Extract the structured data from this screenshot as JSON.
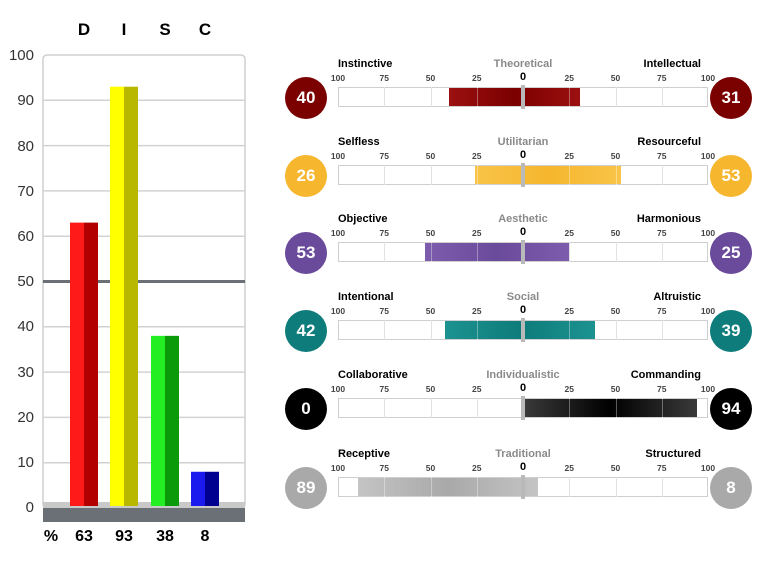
{
  "chart_data": [
    {
      "type": "bar",
      "categories": [
        "D",
        "I",
        "S",
        "C"
      ],
      "values": [
        63,
        93,
        38,
        8
      ],
      "ylim": [
        0,
        100
      ],
      "yticks": [
        "0",
        "10",
        "20",
        "30",
        "40",
        "50",
        "60",
        "70",
        "80",
        "90",
        "100"
      ],
      "reference_line": 50,
      "percent_label": "%",
      "value_labels": [
        "63",
        "93",
        "38",
        "8"
      ],
      "colors": [
        {
          "light": "#ff1a1a",
          "dark": "#b20000"
        },
        {
          "light": "#ffff00",
          "dark": "#b8b800"
        },
        {
          "light": "#22ee22",
          "dark": "#0a9a0a"
        },
        {
          "light": "#1a1aee",
          "dark": "#000090"
        }
      ]
    },
    {
      "type": "bar",
      "orientation": "bipolar-horizontal",
      "scale_ticks": [
        "100",
        "75",
        "50",
        "25",
        "0",
        "25",
        "50",
        "75",
        "100"
      ],
      "rows": [
        {
          "left_label": "Instinctive",
          "middle_label": "Theoretical",
          "right_label": "Intellectual",
          "left_value": 40,
          "right_value": 31,
          "left_text": "40",
          "right_text": "31",
          "color": "#7b0000",
          "light": "#9c1010"
        },
        {
          "left_label": "Selfless",
          "middle_label": "Utilitarian",
          "right_label": "Resourceful",
          "left_value": 26,
          "right_value": 53,
          "left_text": "26",
          "right_text": "53",
          "color": "#f6b62d",
          "light": "#f8c448"
        },
        {
          "left_label": "Objective",
          "middle_label": "Aesthetic",
          "right_label": "Harmonious",
          "left_value": 53,
          "right_value": 25,
          "left_text": "53",
          "right_text": "25",
          "color": "#6a4a9a",
          "light": "#7d5cae"
        },
        {
          "left_label": "Intentional",
          "middle_label": "Social",
          "right_label": "Altruistic",
          "left_value": 42,
          "right_value": 39,
          "left_text": "42",
          "right_text": "39",
          "color": "#0e7c7b",
          "light": "#1c9290"
        },
        {
          "left_label": "Collaborative",
          "middle_label": "Individualistic",
          "right_label": "Commanding",
          "left_value": 0,
          "right_value": 94,
          "left_text": "0",
          "right_text": "94",
          "color": "#000000",
          "light": "#3a3a3a"
        },
        {
          "left_label": "Receptive",
          "middle_label": "Traditional",
          "right_label": "Structured",
          "left_value": 89,
          "right_value": 8,
          "left_text": "89",
          "right_text": "8",
          "color": "#a9a9a9",
          "light": "#c4c4c4"
        }
      ]
    }
  ]
}
